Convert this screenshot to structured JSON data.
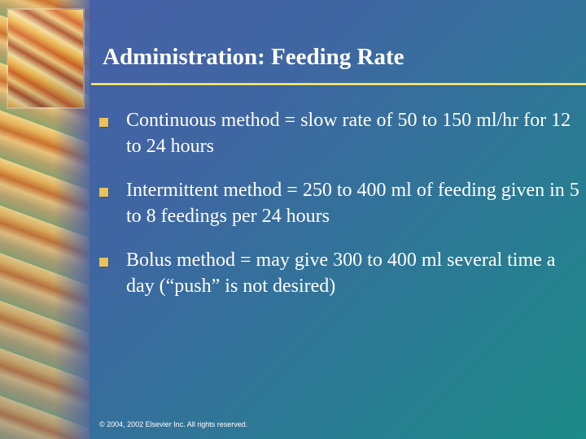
{
  "slide": {
    "title": "Administration: Feeding Rate",
    "bullets": [
      {
        "text": "Continuous method = slow rate of 50 to 150 ml/hr for 12 to 24 hours"
      },
      {
        "text": "Intermittent method = 250 to 400 ml of feeding given in 5 to 8 feedings per 24 hours"
      },
      {
        "text": "Bolus method = may give 300 to 400 ml several time a day (“push” is not desired)"
      }
    ],
    "footer": "© 2004, 2002  Elsevier Inc.  All rights reserved."
  },
  "colors": {
    "background_start": "#4a5fa8",
    "background_end": "#1c8a86",
    "title_rule": "#f0e06a",
    "bullet_marker": "#e8c25a",
    "text": "#ffffff"
  },
  "icons": {
    "bullet": "square-bullet-icon",
    "decoration": "feather-image"
  }
}
